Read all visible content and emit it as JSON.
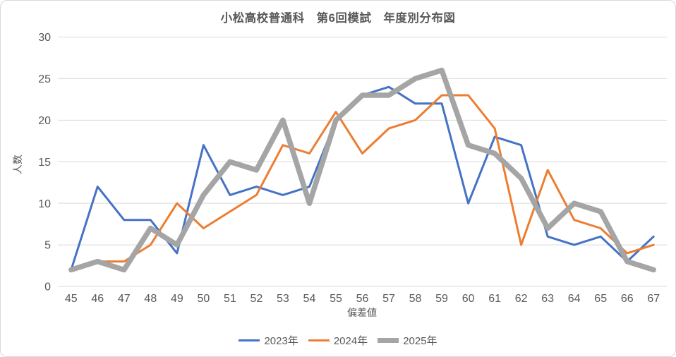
{
  "title": "小松高校普通科　第6回模試　年度別分布図",
  "chart_data": {
    "type": "line",
    "x": [
      45,
      46,
      47,
      48,
      49,
      50,
      51,
      52,
      53,
      54,
      55,
      56,
      57,
      58,
      59,
      60,
      61,
      62,
      63,
      64,
      65,
      66,
      67
    ],
    "xlabel": "偏差値",
    "ylabel": "人数",
    "ylim": [
      0,
      30
    ],
    "yticks": [
      0,
      5,
      10,
      15,
      20,
      25,
      30
    ],
    "grid": true,
    "legend_position": "bottom",
    "series": [
      {
        "name": "2023年",
        "color": "#4472C4",
        "width": 3,
        "values": [
          2,
          12,
          8,
          8,
          4,
          17,
          11,
          12,
          11,
          12,
          20,
          23,
          24,
          22,
          22,
          10,
          18,
          17,
          6,
          5,
          6,
          3,
          6
        ]
      },
      {
        "name": "2024年",
        "color": "#ED7D31",
        "width": 3,
        "values": [
          2,
          3,
          3,
          5,
          10,
          7,
          9,
          11,
          17,
          16,
          21,
          16,
          19,
          20,
          23,
          23,
          19,
          5,
          14,
          8,
          7,
          4,
          5
        ]
      },
      {
        "name": "2025年",
        "color": "#A5A5A5",
        "width": 7.5,
        "values": [
          2,
          3,
          2,
          7,
          5,
          11,
          15,
          14,
          20,
          10,
          20,
          23,
          23,
          25,
          26,
          17,
          16,
          13,
          7,
          10,
          9,
          3,
          2
        ]
      }
    ]
  },
  "colors": {
    "gridline": "#D9D9D9",
    "text": "#595959",
    "background": "#FFFFFF"
  }
}
